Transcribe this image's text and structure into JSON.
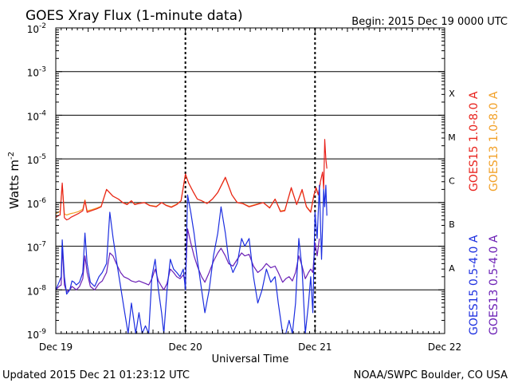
{
  "header": {
    "title": "GOES Xray Flux (1-minute data)",
    "begin": "Begin:  2015 Dec 19 0000 UTC"
  },
  "footer": {
    "updated": "Updated 2015 Dec 21 01:23:12 UTC",
    "credit": "NOAA/SWPC Boulder, CO USA"
  },
  "chart_data": {
    "type": "line",
    "title": "GOES Xray Flux (1-minute data)",
    "xlabel": "Universal Time",
    "ylabel": "Watts m",
    "ylabel_superscript": "-2",
    "y_scale": "log",
    "ylim": [
      1e-09,
      0.01
    ],
    "y_ticks": [
      {
        "base": "10",
        "exp": "-2"
      },
      {
        "base": "10",
        "exp": "-3"
      },
      {
        "base": "10",
        "exp": "-4"
      },
      {
        "base": "10",
        "exp": "-5"
      },
      {
        "base": "10",
        "exp": "-6"
      },
      {
        "base": "10",
        "exp": "-7"
      },
      {
        "base": "10",
        "exp": "-8"
      },
      {
        "base": "10",
        "exp": "-9"
      }
    ],
    "xlim": [
      0,
      72
    ],
    "x_unit": "hours since Dec 19 00:00 UTC",
    "x_ticks": [
      {
        "label": "Dec 19",
        "x": 0
      },
      {
        "label": "Dec 20",
        "x": 24
      },
      {
        "label": "Dec 21",
        "x": 48
      },
      {
        "label": "Dec 22",
        "x": 72
      }
    ],
    "day_markers": [
      24,
      48
    ],
    "flare_classes": [
      {
        "label": "X",
        "at": 0.000316
      },
      {
        "label": "M",
        "at": 3.16e-05
      },
      {
        "label": "C",
        "at": 3.16e-06
      },
      {
        "label": "B",
        "at": 3.16e-07
      },
      {
        "label": "A",
        "at": 3.16e-08
      }
    ],
    "grid": true,
    "legend_position": "right-vertical",
    "series": [
      {
        "name": "GOES15 1.0-8.0 A",
        "color": "#e8211b",
        "x": [
          0,
          0.4,
          0.8,
          1.2,
          1.6,
          2.0,
          2.4,
          2.8,
          3.4,
          4.2,
          5.0,
          5.4,
          5.8,
          6.6,
          7.6,
          8.4,
          9.4,
          10.6,
          11.6,
          12.4,
          13.2,
          14.0,
          14.6,
          15.4,
          16.4,
          17.4,
          18.6,
          19.6,
          20.4,
          21.4,
          22.4,
          23.2,
          24.0,
          24.6,
          25.4,
          26.2,
          27.0,
          28.0,
          29.0,
          30.0,
          31.4,
          32.6,
          33.6,
          34.6,
          35.8,
          37.2,
          38.4,
          39.6,
          40.6,
          41.6,
          42.4,
          43.6,
          44.6,
          45.6,
          46.4,
          47.2,
          47.8,
          48.2,
          48.6,
          49.0,
          49.4,
          49.6,
          49.8,
          50.0,
          50.2
        ],
        "values": [
          4.5e-07,
          5e-07,
          5.2e-07,
          2.8e-06,
          4.5e-07,
          4e-07,
          4.2e-07,
          4.6e-07,
          5e-07,
          5.6e-07,
          6.5e-07,
          1.1e-06,
          6e-07,
          6.5e-07,
          7.2e-07,
          8e-07,
          2e-06,
          1.4e-06,
          1.2e-06,
          1e-06,
          9e-07,
          1.1e-06,
          9e-07,
          9.5e-07,
          1e-06,
          8.5e-07,
          8e-07,
          1e-06,
          8.6e-07,
          7.8e-07,
          9e-07,
          1.1e-06,
          4.5e-06,
          2.8e-06,
          1.8e-06,
          1.2e-06,
          1.1e-06,
          9.5e-07,
          1.2e-06,
          1.7e-06,
          3.8e-06,
          1.5e-06,
          1e-06,
          9.5e-07,
          8e-07,
          9e-07,
          1e-06,
          7.5e-07,
          1.2e-06,
          6.2e-07,
          6.5e-07,
          2.2e-06,
          9e-07,
          2e-06,
          8e-07,
          6e-07,
          1.5e-06,
          2.2e-06,
          1.5e-06,
          3e-06,
          5e-06,
          2e-06,
          2.8e-05,
          1e-05,
          6e-06
        ]
      },
      {
        "name": "GOES13 1.0-8.0 A",
        "color": "#f2a027",
        "x": [
          0,
          0.4,
          0.8,
          1.2,
          1.6,
          2.0,
          2.4,
          2.8,
          3.4,
          4.2,
          5.0,
          5.4,
          5.8,
          6.6,
          7.6,
          8.4,
          9.4,
          10.6,
          11.6,
          12.4,
          13.2,
          14.0,
          14.6,
          15.4,
          16.4,
          17.4,
          18.6,
          19.6,
          20.4,
          21.4,
          22.4,
          23.2,
          24.0,
          24.6,
          25.4,
          26.2,
          27.0,
          28.0,
          29.0,
          30.0,
          31.4,
          32.6,
          33.6,
          34.6,
          35.8,
          37.2,
          38.4,
          39.6,
          40.6,
          41.6,
          42.4,
          43.6,
          44.6,
          45.6,
          46.4,
          47.2,
          47.8,
          48.2,
          48.6,
          49.0
        ],
        "values": [
          5.5e-07,
          6e-07,
          6.2e-07,
          2.6e-06,
          5.5e-07,
          5.2e-07,
          5.4e-07,
          5.6e-07,
          5.8e-07,
          6.2e-07,
          7e-07,
          1.15e-06,
          6.5e-07,
          6.8e-07,
          7.5e-07,
          8.2e-07,
          2e-06,
          1.4e-06,
          1.2e-06,
          1e-06,
          9.2e-07,
          1.1e-06,
          9.2e-07,
          9.6e-07,
          1e-06,
          8.7e-07,
          8.2e-07,
          1e-06,
          8.8e-07,
          8e-07,
          9.2e-07,
          1.1e-06,
          4.4e-06,
          2.8e-06,
          1.8e-06,
          1.2e-06,
          1.1e-06,
          9.6e-07,
          1.2e-06,
          1.7e-06,
          3.7e-06,
          1.5e-06,
          1e-06,
          9.6e-07,
          8.2e-07,
          9.2e-07,
          1e-06,
          7.7e-07,
          1.2e-06,
          6.4e-07,
          6.7e-07,
          2.1e-06,
          9.2e-07,
          1.9e-06,
          8.2e-07,
          6.2e-07,
          1.5e-06,
          2.1e-06,
          1.5e-06,
          2.8e-06
        ]
      },
      {
        "name": "GOES15 0.5-4.0 A",
        "color": "#1c2ee0",
        "x": [
          0,
          0.6,
          1.0,
          1.2,
          1.6,
          2.0,
          2.6,
          3.0,
          3.4,
          3.8,
          4.4,
          5.0,
          5.4,
          5.8,
          6.4,
          7.2,
          8.0,
          8.6,
          9.4,
          10.0,
          10.6,
          11.2,
          12.0,
          12.6,
          13.4,
          14.0,
          14.8,
          15.4,
          16.0,
          16.6,
          17.2,
          17.8,
          18.4,
          19.0,
          19.6,
          20.0,
          20.6,
          21.2,
          21.8,
          22.4,
          23.0,
          23.6,
          24.0,
          24.4,
          25.0,
          25.6,
          26.2,
          27.0,
          27.6,
          28.4,
          29.2,
          30.0,
          30.6,
          31.4,
          32.0,
          32.8,
          33.6,
          34.4,
          35.0,
          35.8,
          36.6,
          37.4,
          38.2,
          39.0,
          39.8,
          40.6,
          41.2,
          42.0,
          42.6,
          43.2,
          43.8,
          44.4,
          45.0,
          45.6,
          46.2,
          46.8,
          47.2,
          47.6,
          48.0,
          48.4,
          48.8,
          49.2,
          49.6,
          49.8,
          50.0,
          50.2
        ],
        "values": [
          1e-08,
          1.5e-08,
          2e-08,
          1.4e-07,
          2e-08,
          8e-09,
          1e-08,
          1.6e-08,
          1.5e-08,
          1.3e-08,
          1.5e-08,
          2.5e-08,
          2e-07,
          4e-08,
          1.5e-08,
          1.2e-08,
          2e-08,
          2.5e-08,
          4e-08,
          6e-07,
          1.6e-07,
          5e-08,
          1.2e-08,
          4e-09,
          1e-09,
          5e-09,
          1e-09,
          3e-09,
          1e-09,
          1.5e-09,
          1e-09,
          2e-08,
          5e-08,
          1e-08,
          3e-09,
          1e-09,
          1e-08,
          5e-08,
          3e-08,
          2.5e-08,
          2e-08,
          3e-08,
          1e-08,
          1.5e-06,
          6e-07,
          2e-07,
          5e-08,
          1e-08,
          3e-09,
          1e-08,
          6e-08,
          2e-07,
          8e-07,
          2e-07,
          5e-08,
          2.5e-08,
          4e-08,
          1.5e-07,
          1e-07,
          1.5e-07,
          2e-08,
          5e-09,
          1e-08,
          3e-08,
          1.5e-08,
          2e-08,
          5e-09,
          1e-09,
          1e-09,
          2e-09,
          1e-09,
          5e-09,
          1.5e-07,
          3e-08,
          1e-09,
          5e-09,
          2e-08,
          3e-09,
          6e-07,
          1.5e-07,
          2.5e-06,
          5e-08,
          2e-06,
          8e-07,
          2.5e-06,
          5e-07
        ]
      },
      {
        "name": "GOES13 0.5-4.0 A",
        "color": "#6a1fb5",
        "x": [
          0,
          0.6,
          1.0,
          1.2,
          1.6,
          2.0,
          2.6,
          3.0,
          3.4,
          3.8,
          4.4,
          5.0,
          5.4,
          5.8,
          6.4,
          7.2,
          8.0,
          8.6,
          9.4,
          10.0,
          10.6,
          11.2,
          12.0,
          12.6,
          13.4,
          14.0,
          14.8,
          15.4,
          16.0,
          16.6,
          17.2,
          17.8,
          18.4,
          19.0,
          19.6,
          20.0,
          20.6,
          21.2,
          21.8,
          22.4,
          23.0,
          23.6,
          24.0,
          24.4,
          25.0,
          25.6,
          26.2,
          27.0,
          27.6,
          28.4,
          29.2,
          30.0,
          30.6,
          31.4,
          32.0,
          32.8,
          33.6,
          34.4,
          35.0,
          35.8,
          36.6,
          37.4,
          38.2,
          39.0,
          39.8,
          40.6,
          41.2,
          42.0,
          42.6,
          43.2,
          43.8,
          44.4,
          45.0,
          45.6,
          46.2,
          46.8,
          47.2,
          47.6,
          48.0,
          48.4,
          48.8
        ],
        "values": [
          1e-08,
          1.2e-08,
          1.3e-08,
          1e-07,
          1.3e-08,
          9e-09,
          1e-08,
          1.2e-08,
          1.1e-08,
          1e-08,
          1.2e-08,
          1.8e-08,
          6e-08,
          2.5e-08,
          1.2e-08,
          1e-08,
          1.4e-08,
          1.6e-08,
          2.5e-08,
          7e-08,
          6e-08,
          4e-08,
          2.5e-08,
          2e-08,
          1.8e-08,
          1.6e-08,
          1.5e-08,
          1.6e-08,
          1.5e-08,
          1.4e-08,
          1.3e-08,
          1.8e-08,
          3e-08,
          1.6e-08,
          1.2e-08,
          1e-08,
          1.4e-08,
          3e-08,
          2.5e-08,
          2e-08,
          1.8e-08,
          2.2e-08,
          1.5e-08,
          2.5e-07,
          1.2e-07,
          6e-08,
          3.5e-08,
          2e-08,
          1.5e-08,
          2.5e-08,
          4.5e-08,
          7e-08,
          9e-08,
          6e-08,
          4e-08,
          3.5e-08,
          5e-08,
          7e-08,
          6e-08,
          6.5e-08,
          3.5e-08,
          2.5e-08,
          3e-08,
          4e-08,
          3.2e-08,
          3.5e-08,
          2.5e-08,
          1.5e-08,
          1.8e-08,
          2e-08,
          1.6e-08,
          2.5e-08,
          6e-08,
          3.5e-08,
          1.8e-08,
          2.5e-08,
          3e-08,
          2.5e-08,
          1.2e-07,
          6e-08,
          1.5e-07
        ]
      }
    ]
  }
}
